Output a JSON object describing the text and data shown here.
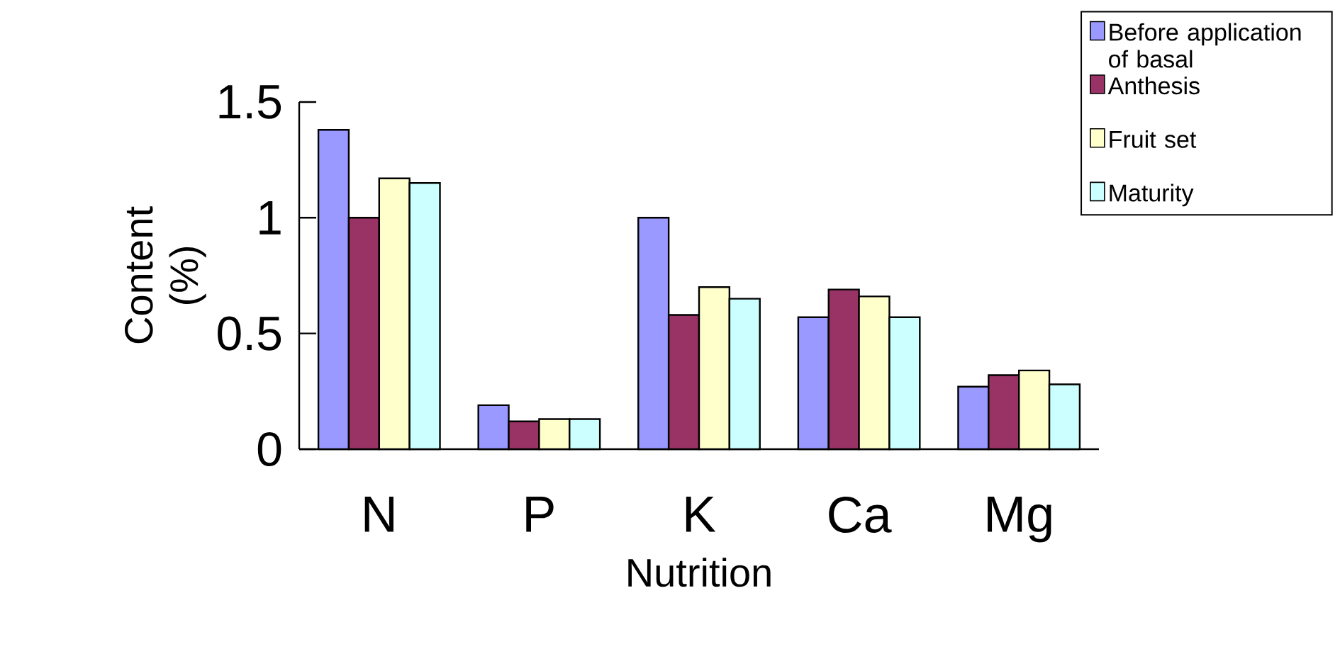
{
  "chart_data": {
    "type": "bar",
    "xlabel": "Nutrition",
    "ylabel": "Content (%)",
    "categories": [
      "N",
      "P",
      "K",
      "Ca",
      "Mg"
    ],
    "series": [
      {
        "name": "Before application of basal",
        "color": "#9999ff",
        "values": [
          1.38,
          0.19,
          1.0,
          0.57,
          0.27
        ]
      },
      {
        "name": "Anthesis",
        "color": "#993366",
        "values": [
          1.0,
          0.12,
          0.58,
          0.69,
          0.32
        ]
      },
      {
        "name": "Fruit set",
        "color": "#ffffcc",
        "values": [
          1.17,
          0.13,
          0.7,
          0.66,
          0.34
        ]
      },
      {
        "name": "Maturity",
        "color": "#ccffff",
        "values": [
          1.15,
          0.13,
          0.65,
          0.57,
          0.28
        ]
      }
    ],
    "ylim": [
      0,
      1.5
    ],
    "yticks": [
      0,
      0.5,
      1,
      1.5
    ],
    "grid": false,
    "legend": "top right"
  }
}
